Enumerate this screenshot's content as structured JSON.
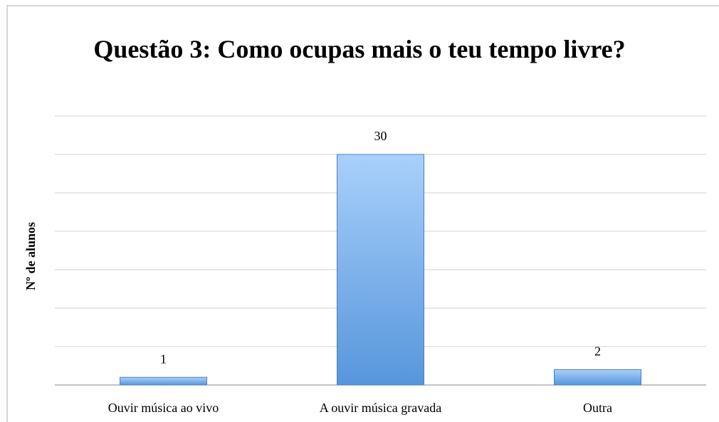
{
  "chart_data": {
    "type": "bar",
    "title": "Questão 3: Como ocupas mais o teu tempo livre?",
    "y_label": "Nº de alunos",
    "categories": [
      "Ouvir música ao vivo",
      "A ouvir música gravada",
      "Outra"
    ],
    "values": [
      1,
      30,
      2
    ],
    "color": "#5b9bd5",
    "ylim": [
      0,
      35
    ],
    "yticks": [
      0,
      5,
      10,
      15,
      20,
      25,
      30,
      35
    ],
    "grid": true
  }
}
